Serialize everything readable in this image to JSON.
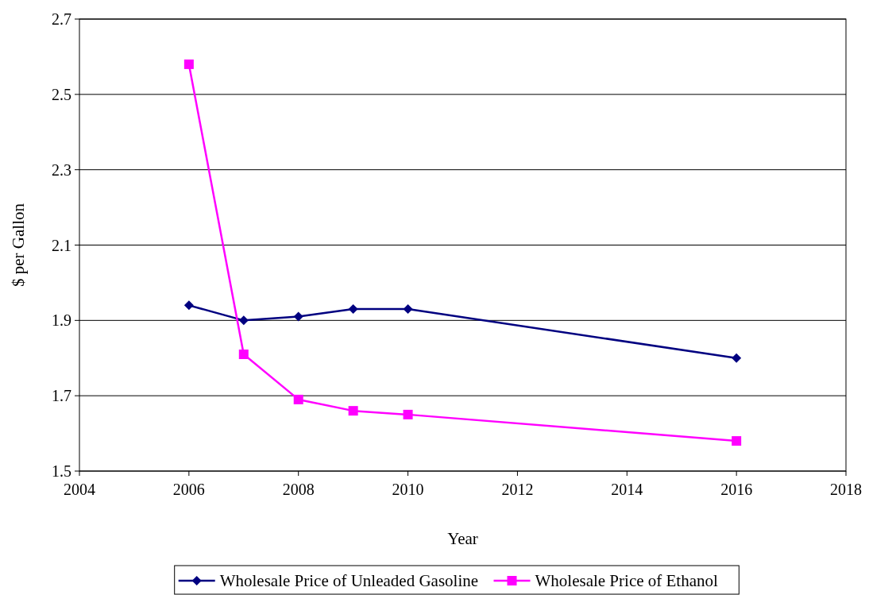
{
  "chart_data": {
    "type": "line",
    "xlabel": "Year",
    "ylabel": "$ per Gallon",
    "xlim": [
      2004,
      2018
    ],
    "xticks": [
      2004,
      2006,
      2008,
      2010,
      2012,
      2014,
      2016,
      2018
    ],
    "ylim": [
      1.5,
      2.7
    ],
    "yticks": [
      {
        "value": 1.5,
        "label": "1.5"
      },
      {
        "value": 1.7,
        "label": "1.7"
      },
      {
        "value": 1.9,
        "label": "1.9"
      },
      {
        "value": 2.1,
        "label": "2.1"
      },
      {
        "value": 2.3,
        "label": "2.3"
      },
      {
        "value": 2.5,
        "label": "2.5"
      },
      {
        "value": 2.7,
        "label": "2.7"
      }
    ],
    "grid": "y",
    "legend": "bottom",
    "line_style": "solid",
    "x": [
      2006,
      2007,
      2008,
      2009,
      2010,
      2016
    ],
    "series": [
      {
        "name": "Wholesale Price of Unleaded Gasoline",
        "color": "#000080",
        "marker": "diamond",
        "values": [
          1.94,
          1.9,
          1.91,
          1.93,
          1.93,
          1.8
        ]
      },
      {
        "name": "Wholesale Price of Ethanol",
        "color": "#ff00ff",
        "marker": "square",
        "values": [
          2.58,
          1.81,
          1.69,
          1.66,
          1.65,
          1.58
        ]
      }
    ]
  }
}
